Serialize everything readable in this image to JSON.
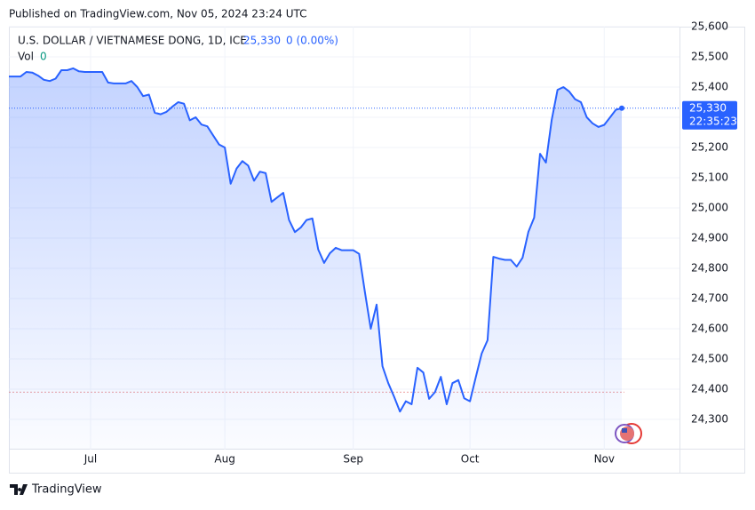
{
  "header": "Published on TradingView.com, Nov 05, 2024 23:24 UTC",
  "legend": {
    "symbol": "U.S. DOLLAR / VIETNAMESE DONG, 1D, ICE",
    "last": "25,330",
    "change": "0 (0.00%)",
    "vol_label": "Vol",
    "vol_value": "0"
  },
  "price_box": {
    "price": "25,330",
    "countdown": "22:35:23"
  },
  "footer": "TradingView",
  "chart_data": {
    "type": "area",
    "categories": [
      null,
      null,
      null,
      null,
      null,
      null,
      null,
      null,
      null,
      null,
      null,
      null,
      null,
      null,
      "Jul",
      null,
      null,
      null,
      null,
      null,
      null,
      null,
      null,
      null,
      null,
      null,
      null,
      null,
      null,
      null,
      null,
      null,
      null,
      null,
      null,
      null,
      null,
      "Aug",
      null,
      null,
      null,
      null,
      null,
      null,
      null,
      null,
      null,
      null,
      null,
      null,
      null,
      null,
      null,
      null,
      null,
      null,
      null,
      null,
      null,
      "Sep",
      null,
      null,
      null,
      null,
      null,
      null,
      null,
      null,
      null,
      null,
      null,
      null,
      null,
      null,
      null,
      null,
      null,
      null,
      null,
      "Oct",
      null,
      null,
      null,
      null,
      null,
      null,
      null,
      null,
      null,
      null,
      null,
      null,
      null,
      null,
      null,
      null,
      null,
      null,
      null,
      null,
      null,
      null,
      "Nov",
      null,
      null,
      null
    ],
    "series": [
      {
        "name": "USD/VND",
        "color": "#2962ff",
        "values": [
          25435,
          25435,
          25435,
          25450,
          25448,
          25438,
          25424,
          25420,
          25428,
          25456,
          25456,
          25462,
          25452,
          25450,
          25450,
          25450,
          25450,
          25415,
          25412,
          25412,
          25412,
          25420,
          25400,
          25370,
          25375,
          25315,
          25310,
          25318,
          25335,
          25350,
          25345,
          25290,
          25300,
          25276,
          25270,
          25240,
          25210,
          25200,
          25080,
          25130,
          25155,
          25140,
          25090,
          25120,
          25115,
          25020,
          25035,
          25050,
          24960,
          24920,
          24935,
          24960,
          24965,
          24862,
          24818,
          24850,
          24868,
          24860,
          24860,
          24860,
          24848,
          24720,
          24600,
          24680,
          24476,
          24420,
          24375,
          24326,
          24360,
          24350,
          24471,
          24455,
          24368,
          24390,
          24441,
          24350,
          24420,
          24430,
          24370,
          24360,
          24440,
          24518,
          24562,
          24838,
          24832,
          24828,
          24828,
          24806,
          24835,
          24921,
          24968,
          25179,
          25150,
          25291,
          25391,
          25400,
          25385,
          25360,
          25350,
          25300,
          25280,
          25268,
          25275,
          25300,
          25325,
          25330
        ]
      }
    ],
    "last_price": 25330,
    "reference_line": 24390,
    "ylim": [
      24200,
      25600
    ],
    "yticks": [
      {
        "value": 24300,
        "label": "24,300"
      },
      {
        "value": 24400,
        "label": "24,400"
      },
      {
        "value": 24500,
        "label": "24,500"
      },
      {
        "value": 24600,
        "label": "24,600"
      },
      {
        "value": 24700,
        "label": "24,700"
      },
      {
        "value": 24800,
        "label": "24,800"
      },
      {
        "value": 24900,
        "label": "24,900"
      },
      {
        "value": 25000,
        "label": "25,000"
      },
      {
        "value": 25100,
        "label": "25,100"
      },
      {
        "value": 25200,
        "label": "25,200"
      },
      {
        "value": 25300,
        "label": "25,300"
      },
      {
        "value": 25400,
        "label": "25,400"
      },
      {
        "value": 25500,
        "label": "25,500"
      },
      {
        "value": 25600,
        "label": "25,600"
      }
    ],
    "grid": true
  }
}
